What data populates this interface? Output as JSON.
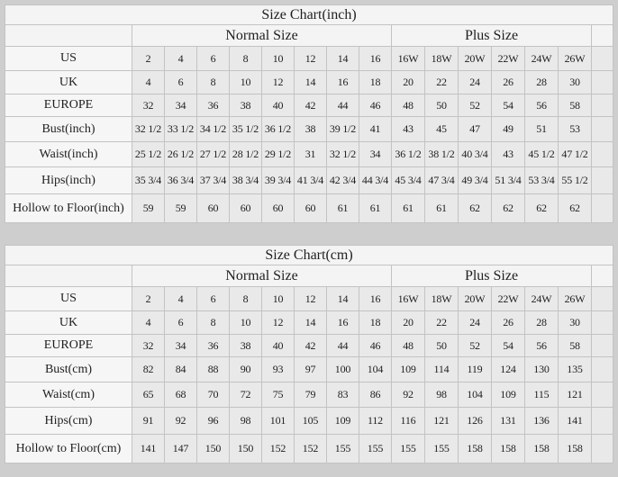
{
  "colors": {
    "page_background": "#cecece",
    "table_header_background": "#f4f4f4",
    "label_cell_background": "#f6f6f6",
    "data_cell_background": "#e9e9e9",
    "border": "#c3c3c3",
    "text": "#1f1f1f"
  },
  "chart_data": [
    {
      "type": "table",
      "title": "Size Chart(inch)",
      "column_groups": [
        {
          "label": "Normal Size",
          "span": 8
        },
        {
          "label": "Plus Size",
          "span": 6
        }
      ],
      "rows": [
        {
          "label": "US",
          "values": [
            "2",
            "4",
            "6",
            "8",
            "10",
            "12",
            "14",
            "16",
            "16W",
            "18W",
            "20W",
            "22W",
            "24W",
            "26W"
          ]
        },
        {
          "label": "UK",
          "values": [
            "4",
            "6",
            "8",
            "10",
            "12",
            "14",
            "16",
            "18",
            "20",
            "22",
            "24",
            "26",
            "28",
            "30"
          ]
        },
        {
          "label": "EUROPE",
          "values": [
            "32",
            "34",
            "36",
            "38",
            "40",
            "42",
            "44",
            "46",
            "48",
            "50",
            "52",
            "54",
            "56",
            "58"
          ]
        },
        {
          "label": "Bust(inch)",
          "values": [
            "32 1/2",
            "33 1/2",
            "34 1/2",
            "35 1/2",
            "36 1/2",
            "38",
            "39 1/2",
            "41",
            "43",
            "45",
            "47",
            "49",
            "51",
            "53"
          ]
        },
        {
          "label": "Waist(inch)",
          "values": [
            "25 1/2",
            "26 1/2",
            "27 1/2",
            "28 1/2",
            "29 1/2",
            "31",
            "32 1/2",
            "34",
            "36 1/2",
            "38 1/2",
            "40 3/4",
            "43",
            "45 1/2",
            "47 1/2"
          ]
        },
        {
          "label": "Hips(inch)",
          "values": [
            "35 3/4",
            "36 3/4",
            "37 3/4",
            "38 3/4",
            "39 3/4",
            "41 3/4",
            "42 3/4",
            "44 3/4",
            "45 3/4",
            "47 3/4",
            "49 3/4",
            "51 3/4",
            "53 3/4",
            "55 1/2"
          ]
        },
        {
          "label": "Hollow to Floor(inch)",
          "values": [
            "59",
            "59",
            "60",
            "60",
            "60",
            "60",
            "61",
            "61",
            "61",
            "61",
            "62",
            "62",
            "62",
            "62"
          ]
        }
      ]
    },
    {
      "type": "table",
      "title": "Size Chart(cm)",
      "column_groups": [
        {
          "label": "Normal Size",
          "span": 8
        },
        {
          "label": "Plus Size",
          "span": 6
        }
      ],
      "rows": [
        {
          "label": "US",
          "values": [
            "2",
            "4",
            "6",
            "8",
            "10",
            "12",
            "14",
            "16",
            "16W",
            "18W",
            "20W",
            "22W",
            "24W",
            "26W"
          ]
        },
        {
          "label": "UK",
          "values": [
            "4",
            "6",
            "8",
            "10",
            "12",
            "14",
            "16",
            "18",
            "20",
            "22",
            "24",
            "26",
            "28",
            "30"
          ]
        },
        {
          "label": "EUROPE",
          "values": [
            "32",
            "34",
            "36",
            "38",
            "40",
            "42",
            "44",
            "46",
            "48",
            "50",
            "52",
            "54",
            "56",
            "58"
          ]
        },
        {
          "label": "Bust(cm)",
          "values": [
            "82",
            "84",
            "88",
            "90",
            "93",
            "97",
            "100",
            "104",
            "109",
            "114",
            "119",
            "124",
            "130",
            "135"
          ]
        },
        {
          "label": "Waist(cm)",
          "values": [
            "65",
            "68",
            "70",
            "72",
            "75",
            "79",
            "83",
            "86",
            "92",
            "98",
            "104",
            "109",
            "115",
            "121"
          ]
        },
        {
          "label": "Hips(cm)",
          "values": [
            "91",
            "92",
            "96",
            "98",
            "101",
            "105",
            "109",
            "112",
            "116",
            "121",
            "126",
            "131",
            "136",
            "141"
          ]
        },
        {
          "label": "Hollow to Floor(cm)",
          "values": [
            "141",
            "147",
            "150",
            "150",
            "152",
            "152",
            "155",
            "155",
            "155",
            "155",
            "158",
            "158",
            "158",
            "158"
          ]
        }
      ]
    }
  ]
}
